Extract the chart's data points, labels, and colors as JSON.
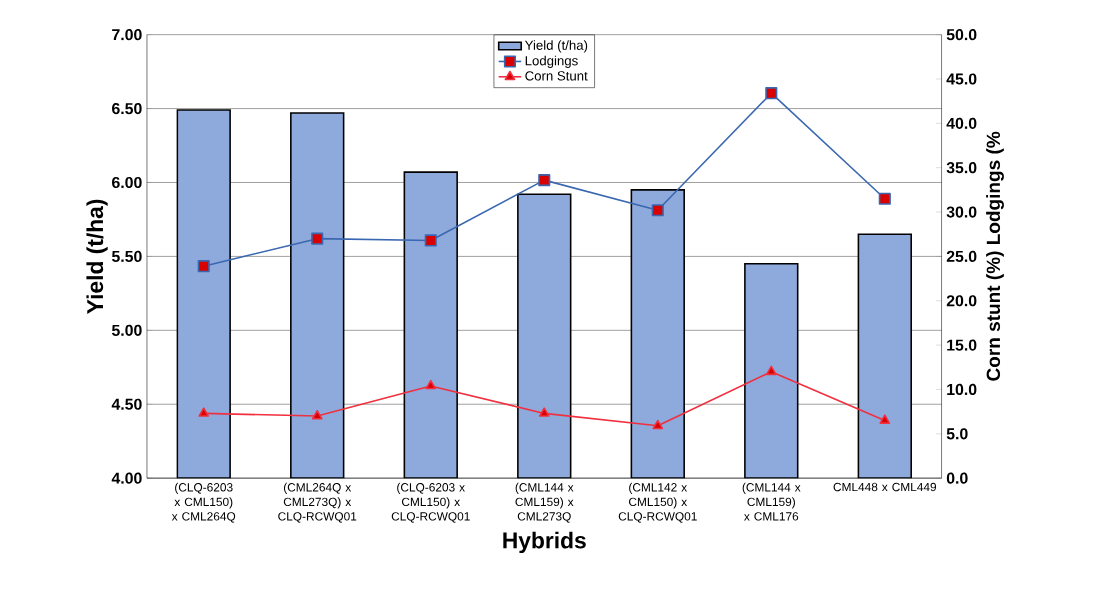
{
  "chart_data": {
    "type": "bar",
    "xlabel": "Hybrids",
    "ylabel": "Yield (t/ha)",
    "y2label": "Corn stunt (%)   Lodgings (%",
    "categories": [
      "(CLQ-6203 x CML150) x CML264Q",
      "(CML264Q x CML273Q) x CLQ-RCWQ01",
      "(CLQ-6203 x CML150) x CLQ-RCWQ01",
      "(CML144 x CML159) x CML273Q",
      "(CML142 x CML150) x CLQ-RCWQ01",
      "(CML144 x CML159) x CML176",
      "CML448 x CML449"
    ],
    "series": [
      {
        "name": "Yield (t/ha)",
        "color": "#8ea9db",
        "values": [
          6.49,
          6.47,
          6.07,
          5.92,
          5.95,
          5.45,
          5.65
        ]
      },
      {
        "name": "Lodgings",
        "type": "line",
        "axis": "y2",
        "color": "#3a68b0",
        "marker": "square",
        "values": [
          23.9,
          27.0,
          26.8,
          33.6,
          30.2,
          43.4,
          31.5
        ]
      },
      {
        "name": "Corn Stunt",
        "type": "line",
        "axis": "y2",
        "color": "#f0303f",
        "marker": "triangle",
        "values": [
          7.3,
          7.0,
          10.4,
          7.3,
          5.9,
          12.0,
          6.5
        ]
      }
    ],
    "ylim": [
      4,
      7
    ],
    "yticks": [
      {
        "value": 4,
        "label": "4.00"
      },
      {
        "value": 4.5,
        "label": "4.50"
      },
      {
        "value": 5,
        "label": "5.00"
      },
      {
        "value": 5.5,
        "label": "5.50"
      },
      {
        "value": 6,
        "label": "6.00"
      },
      {
        "value": 6.5,
        "label": "6.50"
      },
      {
        "value": 7,
        "label": "7.00"
      }
    ],
    "y2lim": [
      0,
      50
    ],
    "y2ticks": [
      {
        "value": 0,
        "label": "0.0"
      },
      {
        "value": 5,
        "label": "5.0"
      },
      {
        "value": 10,
        "label": "10.0"
      },
      {
        "value": 15,
        "label": "15.0"
      },
      {
        "value": 20,
        "label": "20.0"
      },
      {
        "value": 25,
        "label": "25.0"
      },
      {
        "value": 30,
        "label": "30.0"
      },
      {
        "value": 35,
        "label": "35.0"
      },
      {
        "value": 40,
        "label": "40.0"
      },
      {
        "value": 45,
        "label": "45.0"
      },
      {
        "value": 50,
        "label": "50.0"
      }
    ],
    "grid": "y",
    "legend": "top"
  }
}
